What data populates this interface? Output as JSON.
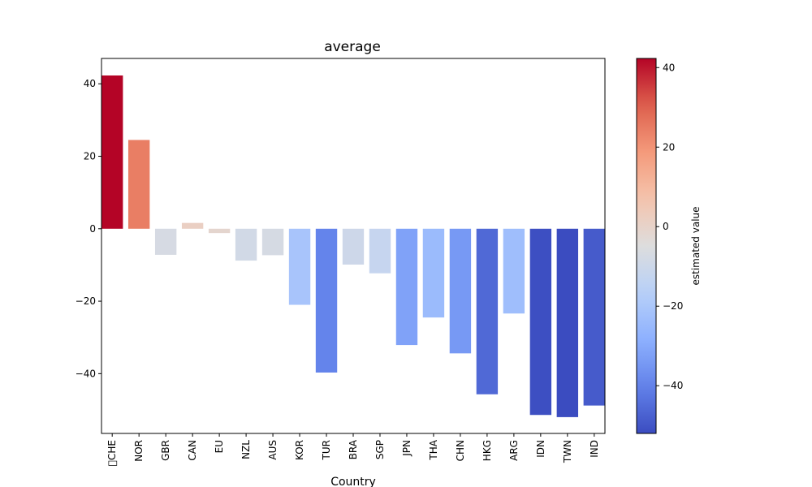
{
  "chart_data": {
    "type": "bar",
    "title": "average",
    "xlabel": "Country",
    "ylabel": "",
    "ylim": [
      -56.5,
      47
    ],
    "yticks": [
      40,
      20,
      0,
      -20,
      -40
    ],
    "ytick_labels": [
      "40",
      "20",
      "0",
      "−20",
      "−40"
    ],
    "categories": [
      "\u0000CHE",
      "NOR",
      "GBR",
      "CAN",
      "EU",
      "NZL",
      "AUS",
      "KOR",
      "TUR",
      "BRA",
      "SGP",
      "JPN",
      "THA",
      "CHN",
      "HKG",
      "ARG",
      "IDN",
      "TWN",
      "IND"
    ],
    "values": [
      42.3,
      24.5,
      -7.2,
      1.6,
      -1.2,
      -8.8,
      -7.3,
      -21.0,
      -39.7,
      -9.9,
      -12.3,
      -32.1,
      -24.5,
      -34.4,
      -45.7,
      -23.4,
      -51.4,
      -52.0,
      -48.8
    ],
    "colormap": "coolwarm",
    "colorbar": {
      "label": "estimated value",
      "vmin": -52.0,
      "vmax": 42.3,
      "ticks": [
        40,
        20,
        0,
        -20,
        -40
      ],
      "tick_labels": [
        "40",
        "20",
        "0",
        "−20",
        "−40"
      ]
    },
    "grid": false,
    "legend": "none"
  }
}
